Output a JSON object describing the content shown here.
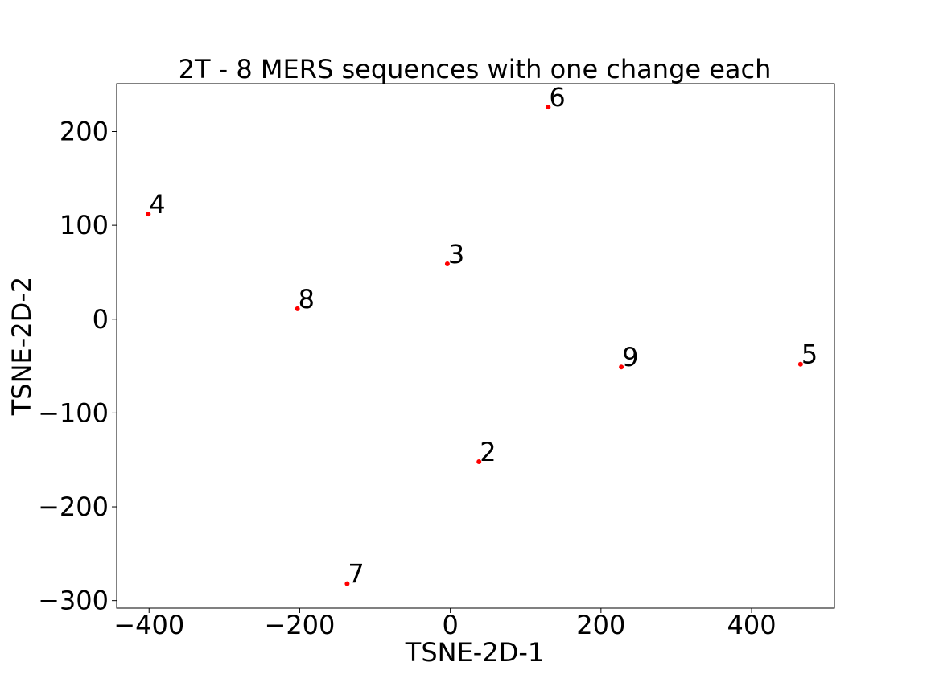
{
  "chart_data": {
    "type": "scatter",
    "title": "2T - 8 MERS sequences with one change each",
    "xlabel": "TSNE-2D-1",
    "ylabel": "TSNE-2D-2",
    "xlim": [
      -443,
      510
    ],
    "ylim": [
      -308,
      251
    ],
    "xticks": [
      -400,
      -200,
      0,
      200,
      400
    ],
    "xtick_labels": [
      "−400",
      "−200",
      "0",
      "200",
      "400"
    ],
    "yticks": [
      -300,
      -200,
      -100,
      0,
      100,
      200
    ],
    "ytick_labels": [
      "−300",
      "−200",
      "−100",
      "0",
      "100",
      "200"
    ],
    "grid": false,
    "marker_color": "#ff0000",
    "points": [
      {
        "label": "2",
        "x": 38,
        "y": -152
      },
      {
        "label": "3",
        "x": -4,
        "y": 59
      },
      {
        "label": "4",
        "x": -401,
        "y": 112
      },
      {
        "label": "5",
        "x": 465,
        "y": -48
      },
      {
        "label": "6",
        "x": 130,
        "y": 226
      },
      {
        "label": "7",
        "x": -137,
        "y": -282
      },
      {
        "label": "8",
        "x": -203,
        "y": 11
      },
      {
        "label": "9",
        "x": 227,
        "y": -51
      }
    ]
  }
}
